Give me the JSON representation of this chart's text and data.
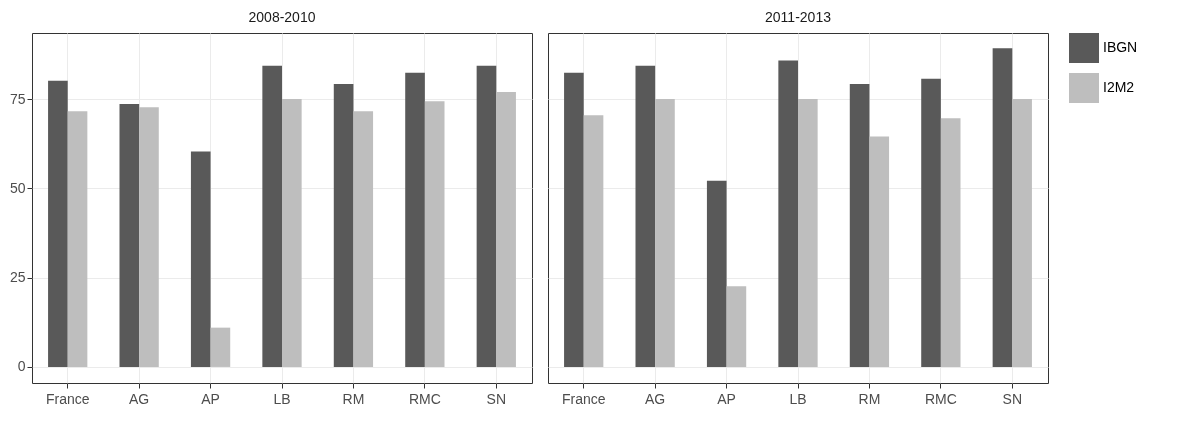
{
  "chart_data": [
    {
      "type": "bar",
      "title": "2008-2010",
      "categories": [
        "France",
        "AG",
        "AP",
        "LB",
        "RM",
        "RMC",
        "SN"
      ],
      "series": [
        {
          "name": "IBGN",
          "color": "#595959",
          "values": [
            80.1,
            73.6,
            60.3,
            84.3,
            79.2,
            82.4,
            84.3
          ]
        },
        {
          "name": "I2M2",
          "color": "#bebebe",
          "values": [
            71.6,
            72.7,
            11,
            75,
            71.6,
            74.4,
            77
          ]
        }
      ],
      "ylim": [
        -4.5,
        93.5
      ],
      "yticks": [
        0,
        25,
        50,
        75
      ],
      "grid": true,
      "legend": "right"
    },
    {
      "type": "bar",
      "title": "2011-2013",
      "categories": [
        "France",
        "AG",
        "AP",
        "LB",
        "RM",
        "RMC",
        "SN"
      ],
      "series": [
        {
          "name": "IBGN",
          "color": "#595959",
          "values": [
            82.4,
            84.3,
            52.1,
            85.8,
            79.2,
            80.7,
            89.2
          ]
        },
        {
          "name": "I2M2",
          "color": "#bebebe",
          "values": [
            70.5,
            75,
            22.6,
            75,
            64.5,
            69.6,
            75
          ]
        }
      ],
      "ylim": [
        -4.5,
        93.5
      ],
      "yticks": [
        0,
        25,
        50,
        75
      ],
      "grid": true,
      "legend": "right",
      "tick_labels": "x"
    }
  ]
}
